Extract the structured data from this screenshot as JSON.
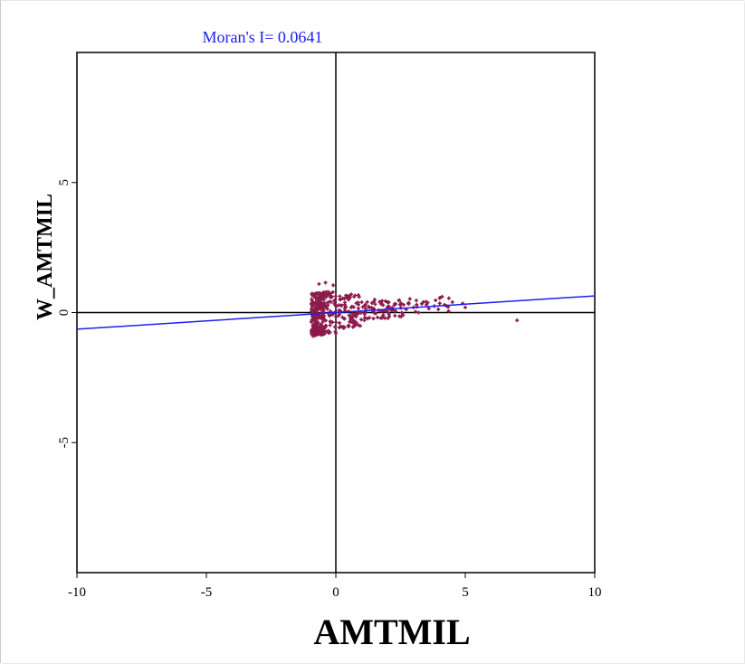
{
  "chart_data": {
    "type": "scatter",
    "title": "Moran's I= 0.0641",
    "xlabel": "AMTMIL",
    "ylabel": "W_AMTMIL",
    "xlim": [
      -10,
      10
    ],
    "ylim": [
      -10,
      10
    ],
    "x_ticks": [
      -10,
      -5,
      0,
      5,
      10
    ],
    "x_tick_labels": [
      "-10",
      "-5",
      "0",
      "5",
      "10"
    ],
    "y_ticks": [
      -5,
      0,
      5
    ],
    "y_tick_labels": [
      "-5",
      "0",
      "5"
    ],
    "grid": false,
    "legend": "none",
    "colors": {
      "points": "#8b1a4a",
      "regression": "#1e1ef0",
      "title": "#1e1ef0",
      "axes": "#000000"
    },
    "regression_line": {
      "slope": 0.0641,
      "intercept": 0
    },
    "point_count_approx": 450,
    "points": [
      [
        -0.9,
        -0.7
      ],
      [
        -0.85,
        -0.5
      ],
      [
        -0.8,
        -0.3
      ],
      [
        -0.75,
        -0.1
      ],
      [
        -0.7,
        0.1
      ],
      [
        -0.9,
        0.3
      ],
      [
        -0.65,
        1.1
      ],
      [
        -0.4,
        1.15
      ],
      [
        -0.1,
        1.05
      ],
      [
        -0.3,
        0.8
      ],
      [
        -0.2,
        0.6
      ],
      [
        0.0,
        -0.8
      ],
      [
        0.3,
        -0.6
      ],
      [
        0.5,
        -0.5
      ],
      [
        0.8,
        -0.4
      ],
      [
        1.1,
        -0.3
      ],
      [
        1.3,
        -0.2
      ],
      [
        1.0,
        0.4
      ],
      [
        1.5,
        0.5
      ],
      [
        2.0,
        0.4
      ],
      [
        2.5,
        0.3
      ],
      [
        2.8,
        0.35
      ],
      [
        3.0,
        0.2
      ],
      [
        3.5,
        0.3
      ],
      [
        3.8,
        0.25
      ],
      [
        4.2,
        0.3
      ],
      [
        4.5,
        0.4
      ],
      [
        4.9,
        0.35
      ],
      [
        5.0,
        0.2
      ],
      [
        7.0,
        -0.3
      ],
      [
        0.6,
        0.7
      ],
      [
        0.9,
        0.6
      ],
      [
        1.8,
        -0.2
      ],
      [
        2.2,
        0.1
      ],
      [
        2.6,
        -0.1
      ],
      [
        3.2,
        0.0
      ]
    ]
  }
}
